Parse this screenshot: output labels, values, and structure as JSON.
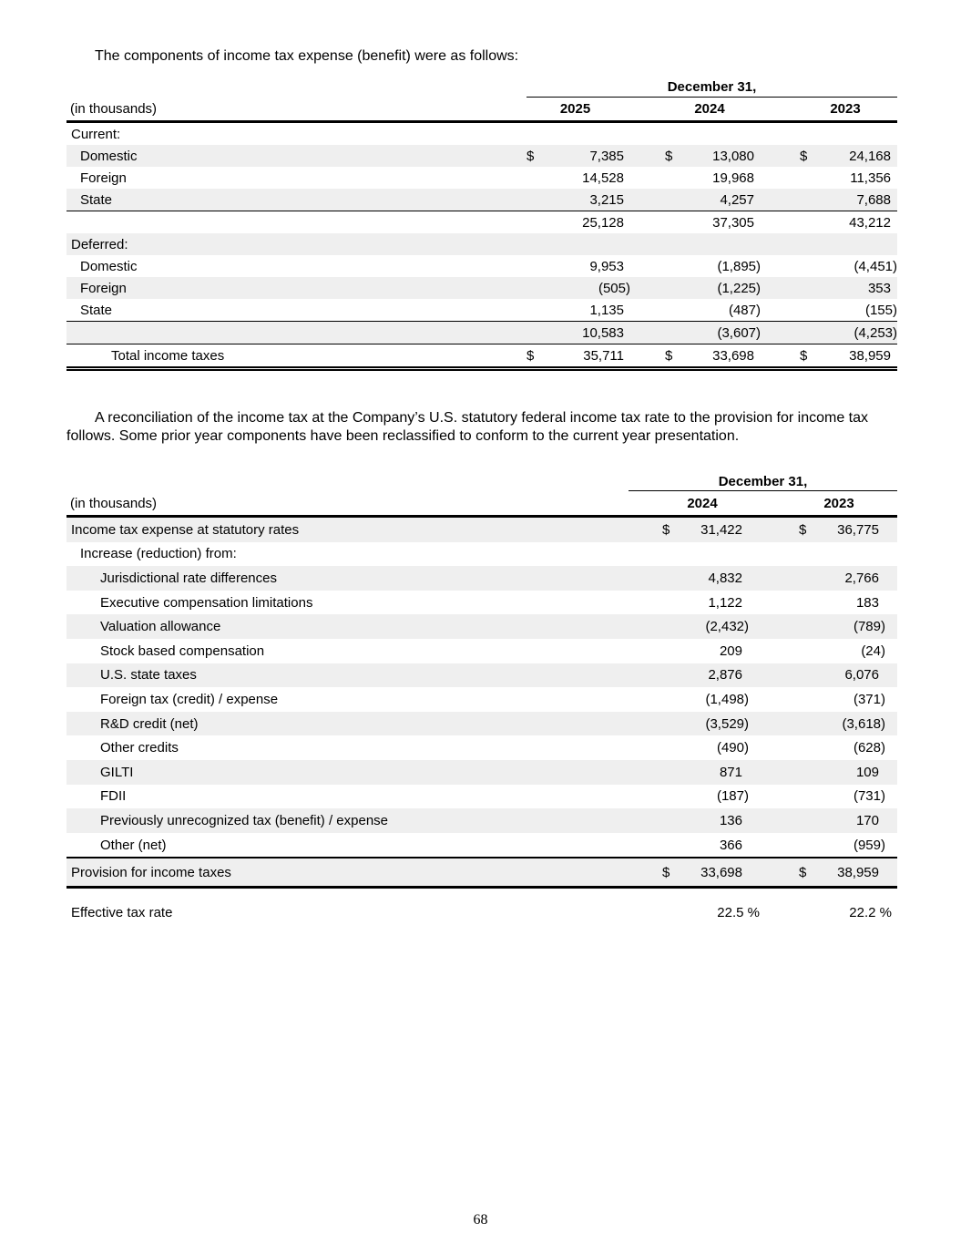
{
  "currency_symbol": "$",
  "colors": {
    "row_shade": "#efefef",
    "rule": "#000000"
  },
  "page": {
    "paragraph1": "The components of income tax expense (benefit) were as follows:",
    "paragraph2": "A reconciliation of the income tax at the Company’s U.S. statutory federal income tax rate to the provision for income tax follows. Some prior year components have been reclassified to conform to the current year presentation.",
    "page_number": "68"
  },
  "table1": {
    "period_header": "December 31,",
    "units_label": "(in thousands)",
    "years": [
      "2025",
      "2024",
      "2023"
    ],
    "rows": [
      {
        "label": "Current:",
        "level": 1,
        "shaded": false,
        "dollar": false,
        "values": [
          "",
          "",
          ""
        ]
      },
      {
        "label": "Domestic",
        "level": 2,
        "shaded": true,
        "dollar": true,
        "values": [
          "7,385",
          "13,080",
          "24,168"
        ]
      },
      {
        "label": "Foreign",
        "level": 2,
        "shaded": false,
        "dollar": false,
        "values": [
          "14,528",
          "19,968",
          "11,356"
        ]
      },
      {
        "label": "State",
        "level": 2,
        "shaded": true,
        "dollar": false,
        "values": [
          "3,215",
          "4,257",
          "7,688"
        ],
        "border": "thin"
      },
      {
        "label": "",
        "level": 0,
        "shaded": false,
        "dollar": false,
        "values": [
          "25,128",
          "37,305",
          "43,212"
        ]
      },
      {
        "label": "Deferred:",
        "level": 1,
        "shaded": true,
        "dollar": false,
        "values": [
          "",
          "",
          ""
        ]
      },
      {
        "label": "Domestic",
        "level": 2,
        "shaded": false,
        "dollar": false,
        "values": [
          "9,953",
          "(1,895)",
          "(4,451)"
        ]
      },
      {
        "label": "Foreign",
        "level": 2,
        "shaded": true,
        "dollar": false,
        "values": [
          "(505)",
          "(1,225)",
          "353"
        ]
      },
      {
        "label": "State",
        "level": 2,
        "shaded": false,
        "dollar": false,
        "values": [
          "1,135",
          "(487)",
          "(155)"
        ],
        "border": "thin"
      },
      {
        "label": "",
        "level": 0,
        "shaded": true,
        "dollar": false,
        "values": [
          "10,583",
          "(3,607)",
          "(4,253)"
        ],
        "border": "thin"
      },
      {
        "label": "Total income taxes",
        "level": 3,
        "shaded": false,
        "dollar": true,
        "values": [
          "35,711",
          "33,698",
          "38,959"
        ],
        "border": "double"
      }
    ]
  },
  "table2": {
    "period_header": "December 31,",
    "units_label": "(in thousands)",
    "years": [
      "2024",
      "2023"
    ],
    "rows": [
      {
        "label": "Income tax expense at statutory rates",
        "level": 1,
        "shaded": true,
        "dollar": true,
        "values": [
          "31,422",
          "36,775"
        ]
      },
      {
        "label": "Increase (reduction) from:",
        "level": 2,
        "shaded": false,
        "dollar": false,
        "values": [
          "",
          ""
        ]
      },
      {
        "label": "Jurisdictional rate differences",
        "level": 3,
        "shaded": true,
        "dollar": false,
        "values": [
          "4,832",
          "2,766"
        ]
      },
      {
        "label": "Executive compensation limitations",
        "level": 3,
        "shaded": false,
        "dollar": false,
        "values": [
          "1,122",
          "183"
        ]
      },
      {
        "label": "Valuation allowance",
        "level": 3,
        "shaded": true,
        "dollar": false,
        "values": [
          "(2,432)",
          "(789)"
        ]
      },
      {
        "label": "Stock based compensation",
        "level": 3,
        "shaded": false,
        "dollar": false,
        "values": [
          "209",
          "(24)"
        ]
      },
      {
        "label": "U.S. state taxes",
        "level": 3,
        "shaded": true,
        "dollar": false,
        "values": [
          "2,876",
          "6,076"
        ]
      },
      {
        "label": "Foreign tax (credit) / expense",
        "level": 3,
        "shaded": false,
        "dollar": false,
        "values": [
          "(1,498)",
          "(371)"
        ]
      },
      {
        "label": "R&D credit (net)",
        "level": 3,
        "shaded": true,
        "dollar": false,
        "values": [
          "(3,529)",
          "(3,618)"
        ]
      },
      {
        "label": "Other credits",
        "level": 3,
        "shaded": false,
        "dollar": false,
        "values": [
          "(490)",
          "(628)"
        ]
      },
      {
        "label": "GILTI",
        "level": 3,
        "shaded": true,
        "dollar": false,
        "values": [
          "871",
          "109"
        ]
      },
      {
        "label": "FDII",
        "level": 3,
        "shaded": false,
        "dollar": false,
        "values": [
          "(187)",
          "(731)"
        ]
      },
      {
        "label": "Previously unrecognized tax (benefit) / expense",
        "level": 3,
        "shaded": true,
        "dollar": false,
        "values": [
          "136",
          "170"
        ]
      },
      {
        "label": "Other (net)",
        "level": 3,
        "shaded": false,
        "dollar": false,
        "values": [
          "366",
          "(959)"
        ],
        "border": "thick"
      }
    ],
    "provision": {
      "label": "Provision for income taxes",
      "values": [
        "33,698",
        "38,959"
      ]
    },
    "effective": {
      "label": "Effective tax rate",
      "values": [
        "22.5 %",
        "22.2 %"
      ]
    }
  }
}
